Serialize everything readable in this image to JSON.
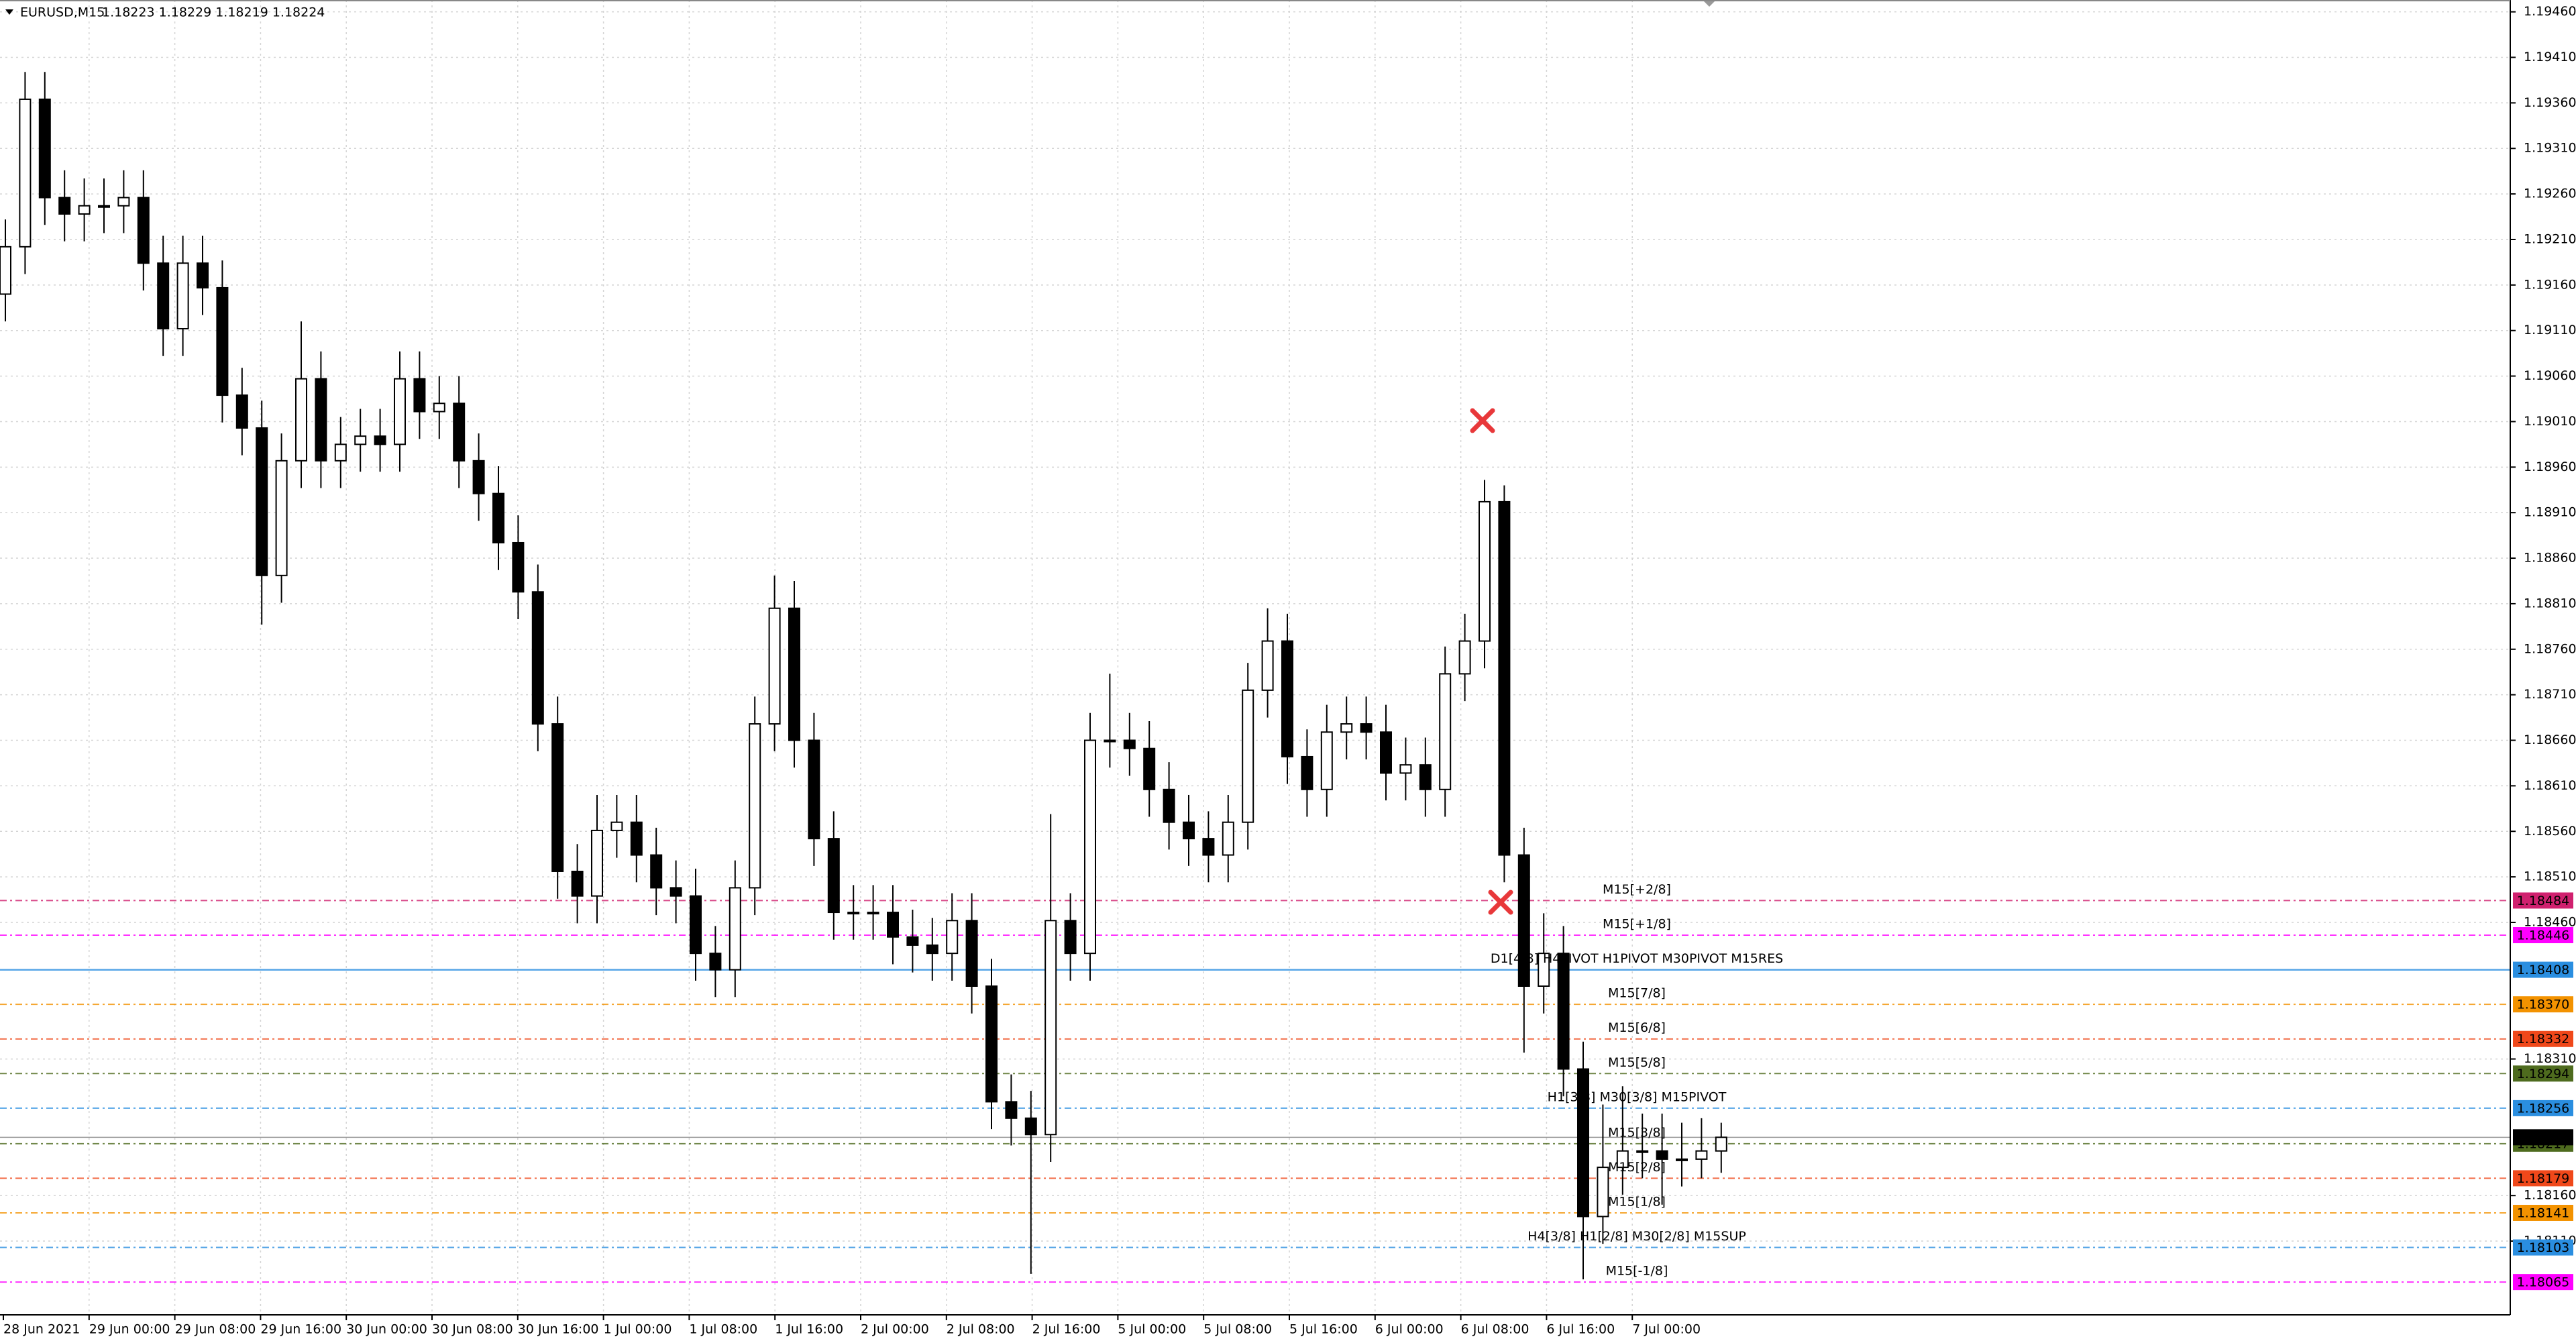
{
  "chart_data": {
    "type": "candlestick",
    "title": "EURUSD,M15",
    "quote": "1.18223 1.18229 1.18219 1.18224",
    "categories": [
      "28 Jun 2021",
      "29 Jun 00:00",
      "29 Jun 08:00",
      "29 Jun 16:00",
      "30 Jun 00:00",
      "30 Jun 08:00",
      "30 Jun 16:00",
      "1 Jul 00:00",
      "1 Jul 08:00",
      "1 Jul 16:00",
      "2 Jul 00:00",
      "2 Jul 08:00",
      "2 Jul 16:00",
      "5 Jul 00:00",
      "5 Jul 08:00",
      "5 Jul 16:00",
      "6 Jul 00:00",
      "6 Jul 08:00",
      "6 Jul 16:00",
      "7 Jul 00:00"
    ],
    "open": [
      1.1915,
      1.19202,
      1.19364,
      1.19256,
      1.19238,
      1.19247,
      1.19247,
      1.19256,
      1.19184,
      1.19112,
      1.19184,
      1.19157,
      1.19039,
      1.19003,
      1.18841,
      1.18967,
      1.19057,
      1.18967,
      1.18985,
      1.18994,
      1.18985,
      1.19057,
      1.19021,
      1.1903,
      1.18967,
      1.18931,
      1.18877,
      1.18823,
      1.18678,
      1.18516,
      1.18489,
      1.18561,
      1.1857,
      1.18534,
      1.18498,
      1.18489,
      1.18426,
      1.18408,
      1.18498,
      1.18678,
      1.18805,
      1.1866,
      1.18552,
      1.18471,
      1.18471,
      1.18471,
      1.18444,
      1.18435,
      1.18426,
      1.18462,
      1.1839,
      1.18263,
      1.18245,
      1.18227,
      1.18462,
      1.18426,
      1.1866,
      1.1866,
      1.18651,
      1.18606,
      1.1857,
      1.18552,
      1.18534,
      1.1857,
      1.18715,
      1.18769,
      1.18642,
      1.18606,
      1.18669,
      1.18678,
      1.18669,
      1.18624,
      1.18633,
      1.18606,
      1.18733,
      1.18769,
      1.18922,
      1.18534,
      1.1839,
      1.18426,
      1.18299,
      1.18137,
      1.18191,
      1.18209,
      1.18209,
      1.182,
      1.182,
      1.18209
    ],
    "high": [
      1.19232,
      1.19394,
      1.19394,
      1.19286,
      1.19277,
      1.19277,
      1.19286,
      1.19286,
      1.19214,
      1.19214,
      1.19214,
      1.19187,
      1.19069,
      1.19033,
      1.18997,
      1.1912,
      1.19087,
      1.19015,
      1.19024,
      1.19024,
      1.19087,
      1.19087,
      1.1906,
      1.1906,
      1.18997,
      1.18961,
      1.18907,
      1.18853,
      1.18708,
      1.18546,
      1.186,
      1.186,
      1.186,
      1.18564,
      1.18528,
      1.18519,
      1.18456,
      1.18528,
      1.18708,
      1.18841,
      1.18835,
      1.1869,
      1.18582,
      1.18501,
      1.18501,
      1.18501,
      1.18474,
      1.18465,
      1.18492,
      1.18492,
      1.1842,
      1.18293,
      1.18275,
      1.18579,
      1.18492,
      1.1869,
      1.18733,
      1.1869,
      1.18681,
      1.18636,
      1.186,
      1.18582,
      1.186,
      1.18745,
      1.18805,
      1.18799,
      1.18672,
      1.18699,
      1.18708,
      1.18708,
      1.18699,
      1.18663,
      1.18663,
      1.18763,
      1.18799,
      1.18946,
      1.1894,
      1.18564,
      1.1847,
      1.18456,
      1.18329,
      1.1826,
      1.1828,
      1.1825,
      1.1825,
      1.1824,
      1.18245,
      1.1824
    ],
    "low": [
      1.1912,
      1.19172,
      1.19226,
      1.19208,
      1.19208,
      1.19217,
      1.19217,
      1.19154,
      1.19082,
      1.19082,
      1.19127,
      1.19009,
      1.18973,
      1.18787,
      1.18811,
      1.18937,
      1.18937,
      1.18937,
      1.18955,
      1.18955,
      1.18955,
      1.18991,
      1.18991,
      1.18937,
      1.18901,
      1.18847,
      1.18793,
      1.18648,
      1.18486,
      1.18459,
      1.18459,
      1.18531,
      1.18504,
      1.18468,
      1.18459,
      1.18396,
      1.18378,
      1.18378,
      1.18468,
      1.18648,
      1.1863,
      1.18522,
      1.18441,
      1.18441,
      1.18441,
      1.18414,
      1.18405,
      1.18396,
      1.18396,
      1.1836,
      1.18233,
      1.18215,
      1.18074,
      1.18197,
      1.18396,
      1.18396,
      1.1863,
      1.18621,
      1.18576,
      1.1854,
      1.18522,
      1.18504,
      1.18504,
      1.1854,
      1.18685,
      1.18612,
      1.18576,
      1.18576,
      1.18639,
      1.18639,
      1.18594,
      1.18594,
      1.18576,
      1.18576,
      1.18703,
      1.18739,
      1.18504,
      1.18317,
      1.1836,
      1.18269,
      1.18068,
      1.18107,
      1.18161,
      1.18179,
      1.1815,
      1.1817,
      1.18179,
      1.18185
    ],
    "close": [
      1.19202,
      1.19364,
      1.19256,
      1.19238,
      1.19247,
      1.19247,
      1.19256,
      1.19184,
      1.19112,
      1.19184,
      1.19157,
      1.19039,
      1.19003,
      1.18841,
      1.18967,
      1.19057,
      1.18967,
      1.18985,
      1.18994,
      1.18985,
      1.19057,
      1.19021,
      1.1903,
      1.18967,
      1.18931,
      1.18877,
      1.18823,
      1.18678,
      1.18516,
      1.18489,
      1.18561,
      1.1857,
      1.18534,
      1.18498,
      1.18489,
      1.18426,
      1.18408,
      1.18498,
      1.18678,
      1.18805,
      1.1866,
      1.18552,
      1.18471,
      1.18471,
      1.18471,
      1.18444,
      1.18435,
      1.18426,
      1.18462,
      1.1839,
      1.18263,
      1.18245,
      1.18227,
      1.18462,
      1.18426,
      1.1866,
      1.1866,
      1.18651,
      1.18606,
      1.1857,
      1.18552,
      1.18534,
      1.1857,
      1.18715,
      1.18769,
      1.18642,
      1.18606,
      1.18669,
      1.18678,
      1.18669,
      1.18624,
      1.18633,
      1.18606,
      1.18733,
      1.18769,
      1.18922,
      1.18534,
      1.1839,
      1.18426,
      1.18299,
      1.18137,
      1.18191,
      1.18209,
      1.18209,
      1.182,
      1.182,
      1.18209,
      1.18224
    ],
    "up_color": "#ffffff",
    "down_color": "#000000",
    "last_color": "#000000",
    "ylim": [
      1.18029,
      1.19473
    ],
    "yticks": [
      {
        "value": 1.1946,
        "label": "1.19460"
      },
      {
        "value": 1.1941,
        "label": "1.19410"
      },
      {
        "value": 1.1936,
        "label": "1.19360"
      },
      {
        "value": 1.1931,
        "label": "1.19310"
      },
      {
        "value": 1.1926,
        "label": "1.19260"
      },
      {
        "value": 1.1921,
        "label": "1.19210"
      },
      {
        "value": 1.1916,
        "label": "1.19160"
      },
      {
        "value": 1.1911,
        "label": "1.19110"
      },
      {
        "value": 1.1906,
        "label": "1.19060"
      },
      {
        "value": 1.1901,
        "label": "1.19010"
      },
      {
        "value": 1.1896,
        "label": "1.18960"
      },
      {
        "value": 1.1891,
        "label": "1.18910"
      },
      {
        "value": 1.1886,
        "label": "1.18860"
      },
      {
        "value": 1.1881,
        "label": "1.18810"
      },
      {
        "value": 1.1876,
        "label": "1.18760"
      },
      {
        "value": 1.1871,
        "label": "1.18710"
      },
      {
        "value": 1.1866,
        "label": "1.18660"
      },
      {
        "value": 1.1861,
        "label": "1.18610"
      },
      {
        "value": 1.1856,
        "label": "1.18560"
      },
      {
        "value": 1.1851,
        "label": "1.18510"
      },
      {
        "value": 1.1846,
        "label": "1.18460"
      },
      {
        "value": 1.1831,
        "label": "1.18310"
      },
      {
        "value": 1.1816,
        "label": "1.18160"
      },
      {
        "value": 1.1811,
        "label": "1.18110"
      }
    ],
    "grid": true,
    "levels": [
      {
        "name": "M15[+2/8]",
        "value": 1.18484,
        "color": "#d0206e"
      },
      {
        "name": "M15[+1/8]",
        "value": 1.18446,
        "color": "#ff00ff"
      },
      {
        "name": "D1[4/8] H4PIVOT H1PIVOT M30PIVOT M15RES",
        "value": 1.18408,
        "color": "#2a8ee0"
      },
      {
        "name": "M15[7/8]",
        "value": 1.1837,
        "value_label": "1.18370",
        "color": "#f39200"
      },
      {
        "name": "M15[6/8]",
        "value": 1.18332,
        "color": "#f0481a"
      },
      {
        "name": "M15[5/8]",
        "value": 1.18294,
        "color": "#4e6b1e"
      },
      {
        "name": "H1[3/8] M30[3/8] M15PIVOT",
        "value": 1.18256,
        "color": "#2a8ee0"
      },
      {
        "name": "M15[3/8]",
        "value": 1.18217,
        "color": "#4e6b1e"
      },
      {
        "name": "M15[2/8]",
        "value": 1.18179,
        "color": "#f0481a"
      },
      {
        "name": "M15[1/8]",
        "value": 1.18141,
        "color": "#f39200"
      },
      {
        "name": "H4[3/8] H1[2/8] M30[2/8] M15SUP",
        "value": 1.18103,
        "color": "#2a8ee0"
      },
      {
        "name": "M15[-1/8]",
        "value": 1.18065,
        "color": "#ff00ff"
      }
    ]
  }
}
